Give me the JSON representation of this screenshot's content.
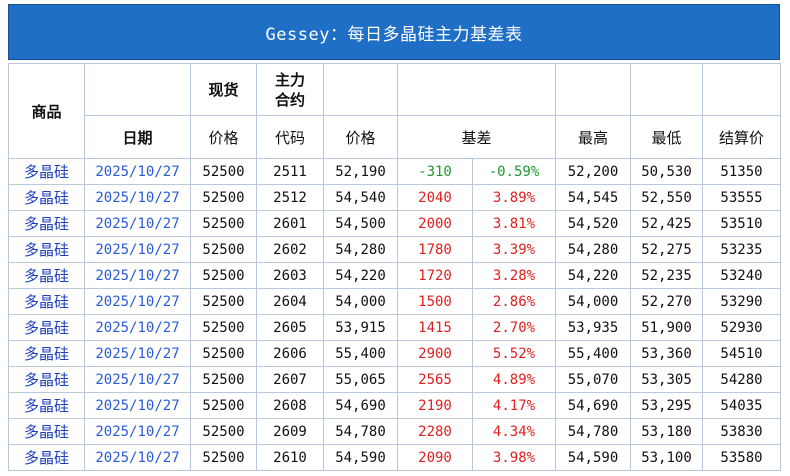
{
  "title": "Gessey：每日多晶硅主力基差表",
  "headers": {
    "product": "商品",
    "spot": "现货",
    "main_contract_line1": "主力",
    "main_contract_line2": "合约",
    "date": "日期",
    "price": "价格",
    "code": "代码",
    "futures_price": "价格",
    "basis": "基差",
    "high": "最高",
    "low": "最低",
    "settle": "结算价"
  },
  "rows": [
    {
      "product": "多晶硅",
      "date": "2025/10/27",
      "spot": "52500",
      "code": "2511",
      "price": "52,190",
      "basis": "-310",
      "basis_pct": "-0.59%",
      "high": "52,200",
      "low": "50,530",
      "settle": "51350",
      "sign": "neg"
    },
    {
      "product": "多晶硅",
      "date": "2025/10/27",
      "spot": "52500",
      "code": "2512",
      "price": "54,540",
      "basis": "2040",
      "basis_pct": "3.89%",
      "high": "54,545",
      "low": "52,550",
      "settle": "53555",
      "sign": "pos"
    },
    {
      "product": "多晶硅",
      "date": "2025/10/27",
      "spot": "52500",
      "code": "2601",
      "price": "54,500",
      "basis": "2000",
      "basis_pct": "3.81%",
      "high": "54,520",
      "low": "52,425",
      "settle": "53510",
      "sign": "pos"
    },
    {
      "product": "多晶硅",
      "date": "2025/10/27",
      "spot": "52500",
      "code": "2602",
      "price": "54,280",
      "basis": "1780",
      "basis_pct": "3.39%",
      "high": "54,280",
      "low": "52,275",
      "settle": "53235",
      "sign": "pos"
    },
    {
      "product": "多晶硅",
      "date": "2025/10/27",
      "spot": "52500",
      "code": "2603",
      "price": "54,220",
      "basis": "1720",
      "basis_pct": "3.28%",
      "high": "54,220",
      "low": "52,235",
      "settle": "53240",
      "sign": "pos"
    },
    {
      "product": "多晶硅",
      "date": "2025/10/27",
      "spot": "52500",
      "code": "2604",
      "price": "54,000",
      "basis": "1500",
      "basis_pct": "2.86%",
      "high": "54,000",
      "low": "52,270",
      "settle": "53290",
      "sign": "pos"
    },
    {
      "product": "多晶硅",
      "date": "2025/10/27",
      "spot": "52500",
      "code": "2605",
      "price": "53,915",
      "basis": "1415",
      "basis_pct": "2.70%",
      "high": "53,935",
      "low": "51,900",
      "settle": "52930",
      "sign": "pos"
    },
    {
      "product": "多晶硅",
      "date": "2025/10/27",
      "spot": "52500",
      "code": "2606",
      "price": "55,400",
      "basis": "2900",
      "basis_pct": "5.52%",
      "high": "55,400",
      "low": "53,360",
      "settle": "54510",
      "sign": "pos"
    },
    {
      "product": "多晶硅",
      "date": "2025/10/27",
      "spot": "52500",
      "code": "2607",
      "price": "55,065",
      "basis": "2565",
      "basis_pct": "4.89%",
      "high": "55,070",
      "low": "53,305",
      "settle": "54280",
      "sign": "pos"
    },
    {
      "product": "多晶硅",
      "date": "2025/10/27",
      "spot": "52500",
      "code": "2608",
      "price": "54,690",
      "basis": "2190",
      "basis_pct": "4.17%",
      "high": "54,690",
      "low": "53,295",
      "settle": "54035",
      "sign": "pos"
    },
    {
      "product": "多晶硅",
      "date": "2025/10/27",
      "spot": "52500",
      "code": "2609",
      "price": "54,780",
      "basis": "2280",
      "basis_pct": "4.34%",
      "high": "54,780",
      "low": "53,180",
      "settle": "53830",
      "sign": "pos"
    },
    {
      "product": "多晶硅",
      "date": "2025/10/27",
      "spot": "52500",
      "code": "2610",
      "price": "54,590",
      "basis": "2090",
      "basis_pct": "3.98%",
      "high": "54,590",
      "low": "53,100",
      "settle": "53580",
      "sign": "pos"
    }
  ],
  "colors": {
    "positive": "#e02020",
    "negative": "#1b9a2a",
    "link": "#2a5bd7",
    "title_bg": "#1f6fc6"
  }
}
